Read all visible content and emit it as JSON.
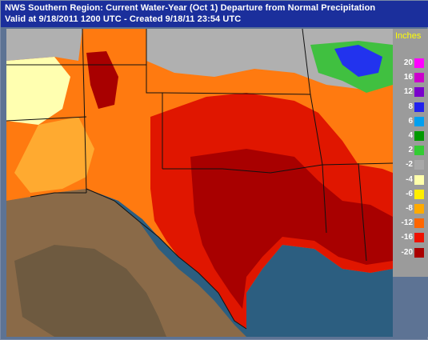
{
  "header": {
    "line1": "NWS Southern Region: Current Water-Year (Oct 1) Departure from Normal Precipitation",
    "line2": "Valid at 9/18/2011 1200 UTC - Created 9/18/11 23:54 UTC"
  },
  "legend": {
    "title": "Inches",
    "items": [
      {
        "label": "20",
        "color": "#ff00ff"
      },
      {
        "label": "16",
        "color": "#cc00cc"
      },
      {
        "label": "12",
        "color": "#7a00cc"
      },
      {
        "label": "8",
        "color": "#2222ee"
      },
      {
        "label": "6",
        "color": "#00a0f0"
      },
      {
        "label": "4",
        "color": "#009900"
      },
      {
        "label": "2",
        "color": "#33cc33"
      },
      {
        "label": "-2",
        "color": "#a8a8a8"
      },
      {
        "label": "-4",
        "color": "#ffffaa"
      },
      {
        "label": "-6",
        "color": "#ffee00"
      },
      {
        "label": "-8",
        "color": "#ffaa00"
      },
      {
        "label": "-12",
        "color": "#ff6600"
      },
      {
        "label": "-16",
        "color": "#ee1100"
      },
      {
        "label": "-20",
        "color": "#aa0000"
      }
    ]
  },
  "map_colors": {
    "ocean": "#2c5e80",
    "mexico_land": "#8a6a48",
    "mountains": "#6e5a40",
    "drought_dark": "#a80000",
    "drought_red": "#e01600",
    "orange": "#ff7a10",
    "light_orange": "#ffaa30",
    "yellow": "#ffe85a",
    "pale": "#ffffb0",
    "gray": "#b0b0b0",
    "green": "#40c040",
    "blue": "#2233ee",
    "border": "#111111"
  }
}
